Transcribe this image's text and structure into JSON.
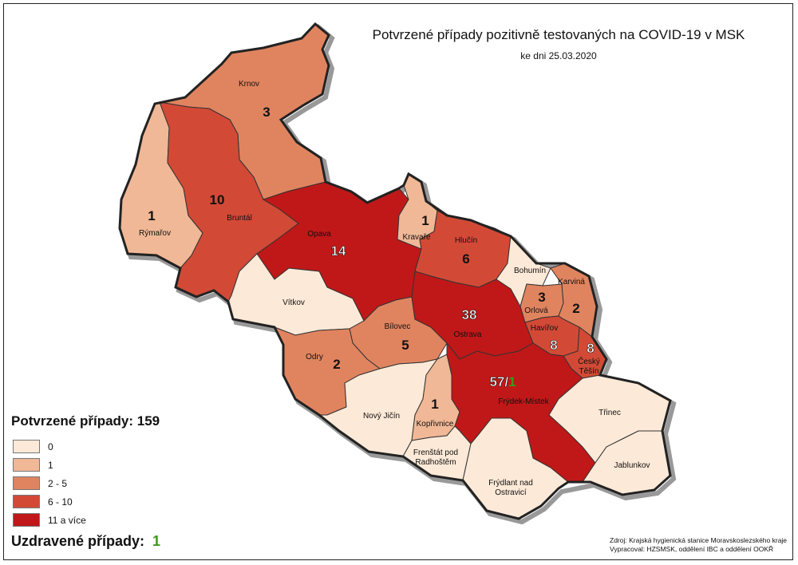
{
  "title": "Potvrzené případy pozitivně testovaných na COVID-19 v MSK",
  "subtitle": "ke dni 25.03.2020",
  "colors": {
    "class0": "#fde9d7",
    "class1": "#f0b896",
    "class2": "#e08460",
    "class3": "#d24a36",
    "class4": "#c01818",
    "border": "#333333",
    "recovered": "#3a9a1a"
  },
  "districts": [
    {
      "name": "Krnov",
      "count": "3",
      "cls": 2
    },
    {
      "name": "Rýmařov",
      "count": "1",
      "cls": 1
    },
    {
      "name": "Bruntál",
      "count": "10",
      "cls": 3
    },
    {
      "name": "Opava",
      "count": "14",
      "cls": 4
    },
    {
      "name": "Kravaře",
      "count": "1",
      "cls": 1
    },
    {
      "name": "Hlučín",
      "count": "6",
      "cls": 3
    },
    {
      "name": "Vítkov",
      "count": "",
      "cls": 0
    },
    {
      "name": "Bílovec",
      "count": "5",
      "cls": 2
    },
    {
      "name": "Ostrava",
      "count": "38",
      "cls": 4
    },
    {
      "name": "Bohumín",
      "count": "",
      "cls": 0
    },
    {
      "name": "Orlová",
      "count": "3",
      "cls": 2
    },
    {
      "name": "Karviná",
      "count": "2",
      "cls": 2
    },
    {
      "name": "Havířov",
      "count": "8",
      "cls": 3
    },
    {
      "name": "Český Těšín",
      "name_line1": "Český",
      "name_line2": "Těšín",
      "count": "8",
      "cls": 3
    },
    {
      "name": "Odry",
      "count": "2",
      "cls": 2
    },
    {
      "name": "Nový Jičín",
      "count": "",
      "cls": 0
    },
    {
      "name": "Kopřivnice",
      "count": "1",
      "cls": 1
    },
    {
      "name": "Frýdek-Místek",
      "count": "57/",
      "count_recovered": "1",
      "cls": 4
    },
    {
      "name": "Třinec",
      "count": "",
      "cls": 0
    },
    {
      "name": "Frenštát pod Radhoštěm",
      "name_line1": "Frenštát pod",
      "name_line2": "Radhoštěm",
      "count": "",
      "cls": 0
    },
    {
      "name": "Frýdlant nad Ostravicí",
      "name_line1": "Frýdlant nad",
      "name_line2": "Ostravicí",
      "count": "",
      "cls": 0
    },
    {
      "name": "Jablunkov",
      "count": "",
      "cls": 0
    }
  ],
  "legend": {
    "title": "Potvrzené případy: 159",
    "items": [
      {
        "label": "0",
        "color": "#fde9d7"
      },
      {
        "label": "1",
        "color": "#f0b896"
      },
      {
        "label": "2 - 5",
        "color": "#e08460"
      },
      {
        "label": "6 - 10",
        "color": "#d24a36"
      },
      {
        "label": "11 a více",
        "color": "#c01818"
      }
    ]
  },
  "recovered": {
    "label": "Uzdravené případy:",
    "value": "1"
  },
  "source": {
    "line1": "Zdroj: Krajská hygienická stanice Moravskoslezského kraje",
    "line2": "Vypracoval: HZSMSK, oddělení IBC a oddělení OOKŘ"
  }
}
